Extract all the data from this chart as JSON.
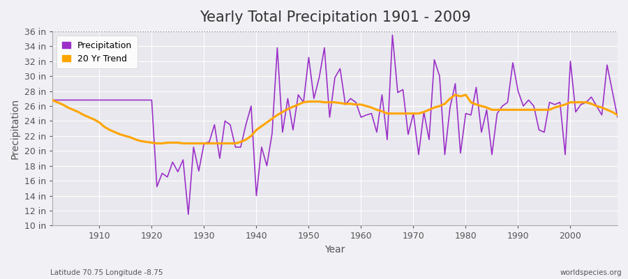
{
  "title": "Yearly Total Precipitation 1901 - 2009",
  "xlabel": "Year",
  "ylabel": "Precipitation",
  "subtitle_left": "Latitude 70.75 Longitude -8.75",
  "subtitle_right": "worldspecies.org",
  "years": [
    1901,
    1902,
    1903,
    1904,
    1905,
    1906,
    1907,
    1908,
    1909,
    1910,
    1911,
    1912,
    1913,
    1914,
    1915,
    1916,
    1917,
    1918,
    1919,
    1920,
    1921,
    1922,
    1923,
    1924,
    1925,
    1926,
    1927,
    1928,
    1929,
    1930,
    1931,
    1932,
    1933,
    1934,
    1935,
    1936,
    1937,
    1938,
    1939,
    1940,
    1941,
    1942,
    1943,
    1944,
    1945,
    1946,
    1947,
    1948,
    1949,
    1950,
    1951,
    1952,
    1953,
    1954,
    1955,
    1956,
    1957,
    1958,
    1959,
    1960,
    1961,
    1962,
    1963,
    1964,
    1965,
    1966,
    1967,
    1968,
    1969,
    1970,
    1971,
    1972,
    1973,
    1974,
    1975,
    1976,
    1977,
    1978,
    1979,
    1980,
    1981,
    1982,
    1983,
    1984,
    1985,
    1986,
    1987,
    1988,
    1989,
    1990,
    1991,
    1992,
    1993,
    1994,
    1995,
    1996,
    1997,
    1998,
    1999,
    2000,
    2001,
    2002,
    2003,
    2004,
    2005,
    2006,
    2007,
    2008,
    2009
  ],
  "precip": [
    26.8,
    26.8,
    26.8,
    26.8,
    26.8,
    26.8,
    26.8,
    26.8,
    26.8,
    26.8,
    26.8,
    26.8,
    26.8,
    26.8,
    26.8,
    26.8,
    26.8,
    26.8,
    26.8,
    26.8,
    15.2,
    17.0,
    16.5,
    18.5,
    17.2,
    18.8,
    11.5,
    20.5,
    17.3,
    21.0,
    21.2,
    23.5,
    19.0,
    24.0,
    23.5,
    20.5,
    20.5,
    23.5,
    26.0,
    14.0,
    20.5,
    18.0,
    22.3,
    33.8,
    22.5,
    27.0,
    22.8,
    27.5,
    26.5,
    32.5,
    27.0,
    29.8,
    33.8,
    24.5,
    29.8,
    31.0,
    26.2,
    27.0,
    26.5,
    24.5,
    24.8,
    25.0,
    22.5,
    27.5,
    21.5,
    35.5,
    27.8,
    28.2,
    22.2,
    25.0,
    19.5,
    25.2,
    21.5,
    32.2,
    30.0,
    19.5,
    25.8,
    29.0,
    19.7,
    25.0,
    24.8,
    28.5,
    22.5,
    25.5,
    19.5,
    25.0,
    26.0,
    26.5,
    31.8,
    28.0,
    26.0,
    26.8,
    26.0,
    22.8,
    22.5,
    26.5,
    26.2,
    26.5,
    19.5,
    32.0,
    25.2,
    26.2,
    26.5,
    27.2,
    26.0,
    24.8,
    31.5,
    28.0,
    24.5
  ],
  "trend": [
    26.8,
    26.5,
    26.2,
    25.8,
    25.5,
    25.2,
    24.8,
    24.5,
    24.2,
    23.8,
    23.2,
    22.8,
    22.5,
    22.2,
    22.0,
    21.8,
    21.5,
    21.3,
    21.2,
    21.1,
    21.0,
    21.0,
    21.1,
    21.1,
    21.1,
    21.0,
    21.0,
    21.0,
    21.0,
    21.0,
    21.0,
    21.0,
    21.0,
    21.0,
    21.0,
    21.0,
    21.2,
    21.5,
    22.0,
    22.8,
    23.3,
    23.8,
    24.3,
    24.8,
    25.2,
    25.6,
    25.9,
    26.2,
    26.5,
    26.6,
    26.6,
    26.6,
    26.5,
    26.5,
    26.5,
    26.4,
    26.3,
    26.3,
    26.2,
    26.2,
    26.0,
    25.8,
    25.5,
    25.3,
    25.0,
    25.0,
    25.0,
    25.0,
    25.0,
    25.0,
    25.0,
    25.2,
    25.5,
    25.8,
    26.0,
    26.3,
    27.0,
    27.5,
    27.3,
    27.5,
    26.5,
    26.2,
    26.0,
    25.8,
    25.5,
    25.5,
    25.5,
    25.5,
    25.5,
    25.5,
    25.5,
    25.5,
    25.5,
    25.5,
    25.5,
    25.5,
    25.8,
    26.0,
    26.2,
    26.5,
    26.5,
    26.5,
    26.5,
    26.3,
    26.0,
    25.8,
    25.5,
    25.2,
    24.8
  ],
  "precip_color": "#9B30C8",
  "trend_color": "#FFA500",
  "fig_bg_color": "#f0f0f5",
  "plot_bg_color": "#e8e8ee",
  "grid_color": "#ffffff",
  "spine_color": "#aaaaaa",
  "text_color": "#555555",
  "ylim": [
    10,
    36
  ],
  "yticks": [
    10,
    12,
    14,
    16,
    18,
    20,
    22,
    24,
    26,
    28,
    30,
    32,
    34,
    36
  ],
  "ytick_labels": [
    "10 in",
    "12 in",
    "14 in",
    "16 in",
    "18 in",
    "20 in",
    "22 in",
    "24 in",
    "26 in",
    "28 in",
    "30 in",
    "32 in",
    "34 in",
    "36 in"
  ],
  "xticks": [
    1910,
    1920,
    1930,
    1940,
    1950,
    1960,
    1970,
    1980,
    1990,
    2000
  ],
  "xlim_left": 1901,
  "xlim_right": 2009,
  "top_dotted_y": 36,
  "title_fontsize": 15,
  "axis_label_fontsize": 10,
  "tick_fontsize": 9,
  "legend_fontsize": 9
}
